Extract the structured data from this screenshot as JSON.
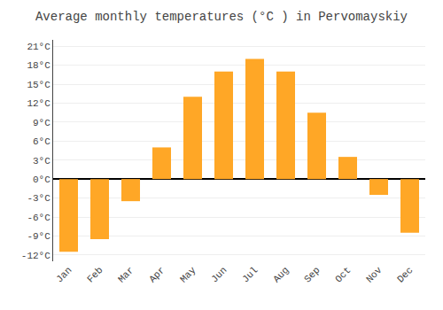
{
  "chart_data": {
    "type": "bar",
    "title": "Average monthly temperatures (°C ) in Pervomayskiy",
    "categories": [
      "Jan",
      "Feb",
      "Mar",
      "Apr",
      "May",
      "Jun",
      "Jul",
      "Aug",
      "Sep",
      "Oct",
      "Nov",
      "Dec"
    ],
    "values": [
      -11.5,
      -9.5,
      -3.5,
      5.0,
      13.0,
      17.0,
      19.0,
      17.0,
      10.5,
      3.5,
      -2.5,
      -8.5
    ],
    "color": "#FFA726",
    "ylim": [
      -13,
      22
    ],
    "yticks": [
      {
        "value": -12,
        "label": "-12°C"
      },
      {
        "value": -9,
        "label": "-9°C"
      },
      {
        "value": -6,
        "label": "-6°C"
      },
      {
        "value": -3,
        "label": "-3°C"
      },
      {
        "value": 0,
        "label": "0°C"
      },
      {
        "value": 3,
        "label": "3°C"
      },
      {
        "value": 6,
        "label": "6°C"
      },
      {
        "value": 9,
        "label": "9°C"
      },
      {
        "value": 12,
        "label": "12°C"
      },
      {
        "value": 15,
        "label": "15°C"
      },
      {
        "value": 18,
        "label": "18°C"
      },
      {
        "value": 21,
        "label": "21°C"
      }
    ],
    "grid": true
  }
}
